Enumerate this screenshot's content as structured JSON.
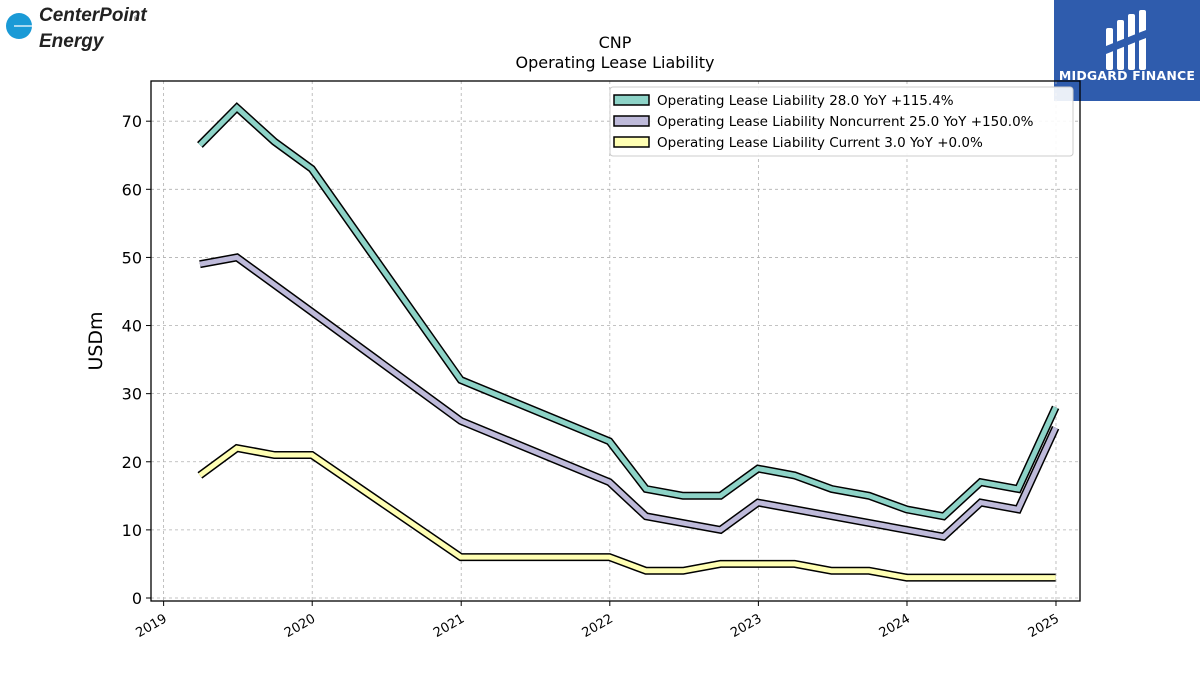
{
  "logos": {
    "left": {
      "icon": "centerpoint-logo",
      "line1": "CenterPoint",
      "line2": "Energy",
      "color": "#1a9ad6"
    },
    "right": {
      "icon": "midgard-finance-logo",
      "text": "MIDGARD FINANCE",
      "color": "#2f5cad"
    }
  },
  "chart_data": {
    "type": "line",
    "title": "CNP",
    "subtitle": "Operating Lease Liability",
    "ylabel": "USDm",
    "xlabel": "",
    "ylim": [
      0,
      75
    ],
    "xlim": [
      "2018-12-01",
      "2025-03-01"
    ],
    "x_ticks": [
      "2019",
      "2020",
      "2021",
      "2022",
      "2023",
      "2024",
      "2025"
    ],
    "y_ticks": [
      0,
      10,
      20,
      30,
      40,
      50,
      60,
      70
    ],
    "grid": true,
    "legend_position": "top-right",
    "series": [
      {
        "name": "Operating Lease Liability  28.0 YoY +115.4%",
        "color": "#8dd3c7",
        "x": [
          "2019-03-31",
          "2019-06-30",
          "2019-09-30",
          "2019-12-31",
          "2020-12-31",
          "2021-12-31",
          "2022-03-31",
          "2022-06-30",
          "2022-09-30",
          "2022-12-31",
          "2023-03-31",
          "2023-06-30",
          "2023-09-30",
          "2023-12-31",
          "2024-03-31",
          "2024-06-30",
          "2024-09-30",
          "2024-12-31"
        ],
        "values": [
          66.5,
          72,
          67,
          63,
          32,
          23,
          16,
          15,
          15,
          19,
          18,
          16,
          15,
          13,
          12,
          17,
          16,
          28
        ]
      },
      {
        "name": "Operating Lease Liability Noncurrent  25.0 YoY +150.0%",
        "color": "#bebada",
        "x": [
          "2019-03-31",
          "2019-06-30",
          "2019-12-31",
          "2020-12-31",
          "2021-12-31",
          "2022-03-31",
          "2022-09-30",
          "2022-12-31",
          "2024-03-31",
          "2024-06-30",
          "2024-09-30",
          "2024-12-31"
        ],
        "values": [
          49,
          50,
          42,
          26,
          17,
          12,
          10,
          14,
          9,
          14,
          13,
          25
        ]
      },
      {
        "name": "Operating Lease Liability Current  3.0 YoY +0.0%",
        "color": "#ffffb3",
        "x": [
          "2019-03-31",
          "2019-06-30",
          "2019-09-30",
          "2019-12-31",
          "2020-12-31",
          "2021-12-31",
          "2022-03-31",
          "2022-06-30",
          "2022-09-30",
          "2022-12-31",
          "2023-03-31",
          "2023-06-30",
          "2023-09-30",
          "2023-12-31",
          "2024-03-31",
          "2024-06-30",
          "2024-09-30",
          "2024-12-31"
        ],
        "values": [
          18,
          22,
          21,
          21,
          6,
          6,
          4,
          4,
          5,
          5,
          5,
          4,
          4,
          3,
          3,
          3,
          3,
          3
        ]
      }
    ]
  }
}
